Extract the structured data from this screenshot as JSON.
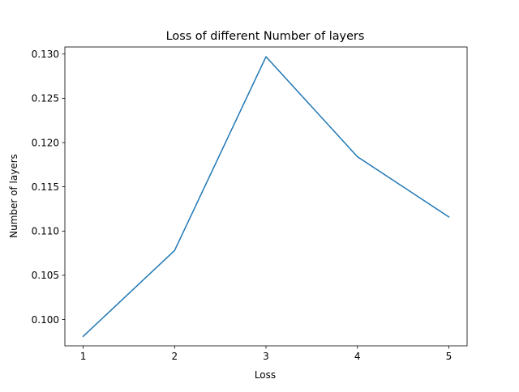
{
  "chart_data": {
    "type": "line",
    "title": "Loss of different Number of layers",
    "xlabel": "Loss",
    "ylabel": "Number of layers",
    "x": [
      1,
      2,
      3,
      4,
      5
    ],
    "series": [
      {
        "values": [
          0.0981,
          0.1078,
          0.1297,
          0.1184,
          0.1116
        ],
        "color": "#1f77b4"
      }
    ],
    "xlim": [
      0.8,
      5.2
    ],
    "ylim": [
      0.09703,
      0.1308
    ],
    "xticks": [
      1,
      2,
      3,
      4,
      5
    ],
    "yticks": [
      0.1,
      0.105,
      0.11,
      0.115,
      0.12,
      0.125,
      0.13
    ],
    "ytick_labels": [
      "0.100",
      "0.105",
      "0.110",
      "0.115",
      "0.120",
      "0.125",
      "0.130"
    ],
    "grid": false,
    "legend": false
  }
}
